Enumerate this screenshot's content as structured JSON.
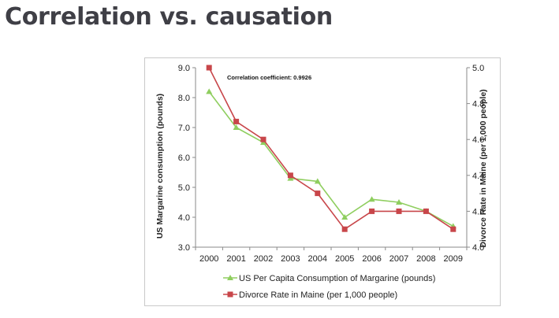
{
  "slide": {
    "title": "Correlation vs. causation"
  },
  "chart_data": {
    "type": "line",
    "x": [
      "2000",
      "2001",
      "2002",
      "2003",
      "2004",
      "2005",
      "2006",
      "2007",
      "2008",
      "2009"
    ],
    "series": [
      {
        "name": "US Per Capita Consumption of Margarine (pounds)",
        "axis": "left",
        "color": "#8fce5f",
        "marker": "triangle",
        "values": [
          8.2,
          7.0,
          6.5,
          5.3,
          5.2,
          4.0,
          4.6,
          4.5,
          4.2,
          3.7
        ]
      },
      {
        "name": "Divorce Rate in Maine (per 1,000 people)",
        "axis": "right",
        "color": "#c8464a",
        "marker": "square",
        "values": [
          5.0,
          4.7,
          4.6,
          4.4,
          4.3,
          4.1,
          4.2,
          4.2,
          4.2,
          4.1
        ]
      }
    ],
    "ylabel_left": "US Margarine consumption (pounds)",
    "ylabel_right": "Divorce Rate in Maine (per 1,000 people)",
    "ylim_left": [
      3.0,
      9.0
    ],
    "yticks_left": [
      "3.0",
      "4.0",
      "5.0",
      "6.0",
      "7.0",
      "8.0",
      "9.0"
    ],
    "ylim_right": [
      4.0,
      5.0
    ],
    "yticks_right": [
      "4.0",
      "4.2",
      "4.4",
      "4.6",
      "4.8",
      "5.0"
    ],
    "annotation": "Correlation coefficient: 0.9926",
    "grid": false,
    "legend_position": "bottom"
  }
}
